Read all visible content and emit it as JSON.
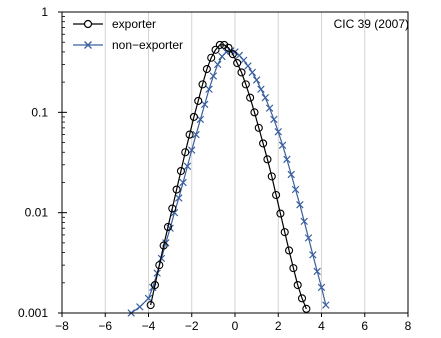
{
  "chart_data": {
    "type": "line",
    "title": "",
    "xlabel": "",
    "ylabel": "",
    "xlim": [
      -8,
      8
    ],
    "ylim": [
      0.001,
      1
    ],
    "y_scale": "log",
    "grid": "vertical gridlines at x ticks",
    "legend_position": "top-left",
    "x_ticks": [
      -8,
      -6,
      -4,
      -2,
      0,
      2,
      4,
      6,
      8
    ],
    "x_tick_labels": [
      "−8",
      "−6",
      "−4",
      "−2",
      "0",
      "2",
      "4",
      "6",
      "8"
    ],
    "y_ticks": [
      0.001,
      0.01,
      0.1,
      1
    ],
    "y_tick_labels": [
      "0.001",
      "0.01",
      "0.1",
      "1"
    ],
    "annotation": "CIC 39 (2007)",
    "colors": {
      "exporter": "#000000",
      "non_exporter": "#3a5f9e"
    },
    "series": [
      {
        "name": "exporter",
        "marker": "circle",
        "x": [
          -3.9,
          -3.7,
          -3.5,
          -3.3,
          -3.1,
          -2.9,
          -2.7,
          -2.5,
          -2.3,
          -2.1,
          -1.9,
          -1.7,
          -1.5,
          -1.3,
          -1.1,
          -0.9,
          -0.7,
          -0.5,
          -0.3,
          -0.1,
          0.1,
          0.3,
          0.5,
          0.7,
          0.9,
          1.1,
          1.3,
          1.5,
          1.7,
          1.9,
          2.1,
          2.3,
          2.5,
          2.7,
          2.9,
          3.1,
          3.3,
          3.5,
          3.7
        ],
        "y": [
          0.0012,
          0.0019,
          0.003,
          0.0047,
          0.0072,
          0.011,
          0.017,
          0.026,
          0.04,
          0.06,
          0.09,
          0.13,
          0.19,
          0.27,
          0.35,
          0.42,
          0.47,
          0.47,
          0.44,
          0.38,
          0.31,
          0.25,
          0.19,
          0.14,
          0.1,
          0.07,
          0.049,
          0.034,
          0.023,
          0.015,
          0.0098,
          0.0064,
          0.0042,
          0.0028,
          0.0019,
          0.0014,
          0.0011,
          0.0009,
          0.0008
        ]
      },
      {
        "name": "non−exporter",
        "marker": "x",
        "x": [
          -4.8,
          -4.4,
          -4.0,
          -3.8,
          -3.6,
          -3.4,
          -3.2,
          -3.0,
          -2.8,
          -2.6,
          -2.4,
          -2.2,
          -2.0,
          -1.8,
          -1.6,
          -1.4,
          -1.2,
          -1.0,
          -0.8,
          -0.6,
          -0.4,
          -0.2,
          0.0,
          0.2,
          0.4,
          0.6,
          0.8,
          1.0,
          1.2,
          1.4,
          1.6,
          1.8,
          2.0,
          2.2,
          2.4,
          2.6,
          2.8,
          3.0,
          3.2,
          3.4,
          3.6,
          3.8,
          4.0,
          4.2
        ],
        "y": [
          0.001,
          0.00115,
          0.0014,
          0.0018,
          0.0025,
          0.0035,
          0.005,
          0.007,
          0.01,
          0.014,
          0.02,
          0.029,
          0.042,
          0.06,
          0.085,
          0.12,
          0.17,
          0.23,
          0.3,
          0.36,
          0.4,
          0.41,
          0.4,
          0.37,
          0.33,
          0.29,
          0.25,
          0.21,
          0.17,
          0.14,
          0.11,
          0.085,
          0.064,
          0.047,
          0.034,
          0.024,
          0.017,
          0.012,
          0.0082,
          0.0056,
          0.0038,
          0.0026,
          0.0018,
          0.0012
        ]
      }
    ]
  }
}
